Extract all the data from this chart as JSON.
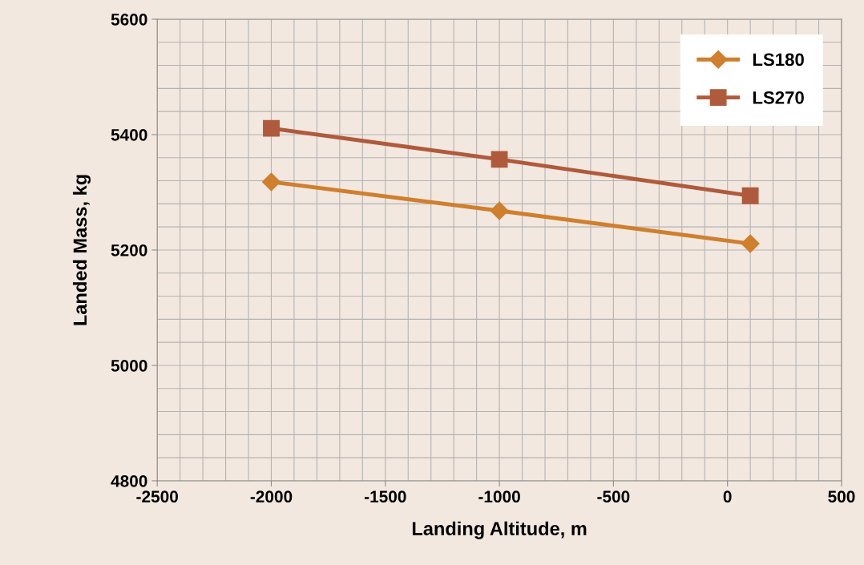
{
  "chart_data": {
    "type": "line",
    "xlabel": "Landing Altitude, m",
    "ylabel": "Landed Mass, kg",
    "x": [
      -2000,
      -1000,
      100
    ],
    "series": [
      {
        "name": "LS180",
        "color": "#cf7f2d",
        "values": [
          5318,
          5268,
          5211
        ],
        "marker": "diamond"
      },
      {
        "name": "LS270",
        "color": "#b05a3c",
        "values": [
          5411,
          5357,
          5294
        ],
        "marker": "square"
      }
    ],
    "xlim": [
      -2500,
      500
    ],
    "xticks": [
      -2500,
      -2000,
      -1500,
      -1000,
      -500,
      0,
      500
    ],
    "ylim": [
      4800,
      5600
    ],
    "yticks": [
      4800,
      5000,
      5200,
      5400,
      5600
    ],
    "grid": true,
    "legend": "top right",
    "line_style": "solid"
  }
}
